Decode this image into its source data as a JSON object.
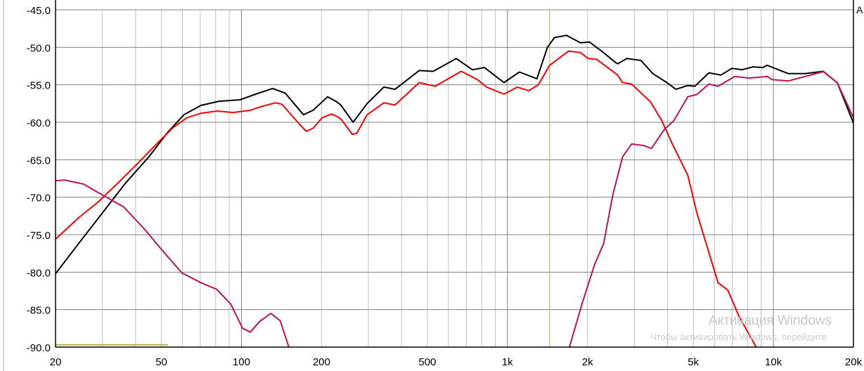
{
  "chart_data": {
    "type": "line",
    "title": "",
    "xlabel": "",
    "ylabel": "",
    "x_scale": "log",
    "xlim": [
      20,
      20000
    ],
    "ylim": [
      -90,
      -45
    ],
    "grid": true,
    "x_ticks": [
      20,
      50,
      100,
      200,
      500,
      1000,
      2000,
      5000,
      10000,
      20000
    ],
    "x_tick_labels": [
      "20",
      "50",
      "100",
      "200",
      "500",
      "1k",
      "2k",
      "5k",
      "10k",
      "20k"
    ],
    "y_ticks": [
      -45,
      -50,
      -55,
      -60,
      -65,
      -70,
      -75,
      -80,
      -85,
      -90
    ],
    "y_tick_labels": [
      "-45.0",
      "-50.0",
      "-55.0",
      "-60.0",
      "-65.0",
      "-70.0",
      "-75.0",
      "-80.0",
      "-85.0",
      "-90.0"
    ],
    "series": [
      {
        "color": "#000000",
        "points": [
          [
            20,
            -80.2
          ],
          [
            24.4,
            -76.2
          ],
          [
            30,
            -72.1
          ],
          [
            36.7,
            -68.1
          ],
          [
            44.9,
            -64.6
          ],
          [
            52.9,
            -61.3
          ],
          [
            60.8,
            -59.0
          ],
          [
            70.4,
            -57.75
          ],
          [
            82.4,
            -57.2
          ],
          [
            98.8,
            -57.0
          ],
          [
            114,
            -56.2
          ],
          [
            131,
            -55.5
          ],
          [
            146,
            -56.1
          ],
          [
            171,
            -59.0
          ],
          [
            186,
            -58.4
          ],
          [
            211,
            -56.6
          ],
          [
            229,
            -57.3
          ],
          [
            237,
            -57.75
          ],
          [
            263,
            -60.0
          ],
          [
            297,
            -57.5
          ],
          [
            343,
            -55.3
          ],
          [
            378,
            -55.6
          ],
          [
            466,
            -53.1
          ],
          [
            526,
            -53.2
          ],
          [
            642,
            -51.5
          ],
          [
            739,
            -53.0
          ],
          [
            819,
            -52.7
          ],
          [
            971,
            -54.7
          ],
          [
            1109,
            -53.3
          ],
          [
            1291,
            -54.2
          ],
          [
            1414,
            -50.0
          ],
          [
            1503,
            -48.7
          ],
          [
            1667,
            -48.4
          ],
          [
            1882,
            -49.4
          ],
          [
            2036,
            -49.3
          ],
          [
            2259,
            -50.5
          ],
          [
            2566,
            -52.1
          ],
          [
            2597,
            -52.2
          ],
          [
            2811,
            -51.5
          ],
          [
            3174,
            -51.75
          ],
          [
            3520,
            -53.5
          ],
          [
            3975,
            -54.7
          ],
          [
            4300,
            -55.6
          ],
          [
            4769,
            -55.1
          ],
          [
            5068,
            -55.2
          ],
          [
            5723,
            -53.4
          ],
          [
            6346,
            -53.7
          ],
          [
            6993,
            -52.8
          ],
          [
            7613,
            -53.0
          ],
          [
            8389,
            -52.6
          ],
          [
            9135,
            -52.7
          ],
          [
            9474,
            -52.4
          ],
          [
            11366,
            -53.5
          ],
          [
            13149,
            -53.5
          ],
          [
            15400,
            -53.2
          ],
          [
            17398,
            -54.75
          ],
          [
            20000,
            -60.1
          ]
        ]
      },
      {
        "color": "#ff0000",
        "points": [
          [
            20,
            -75.6
          ],
          [
            24.4,
            -72.75
          ],
          [
            28.8,
            -70.7
          ],
          [
            33.9,
            -68.3
          ],
          [
            40.7,
            -65.5
          ],
          [
            48.9,
            -62.6
          ],
          [
            55.2,
            -60.75
          ],
          [
            62.3,
            -59.4
          ],
          [
            70.4,
            -58.8
          ],
          [
            80.9,
            -58.5
          ],
          [
            93,
            -58.7
          ],
          [
            108,
            -58.4
          ],
          [
            119,
            -57.9
          ],
          [
            134,
            -57.4
          ],
          [
            142,
            -57.6
          ],
          [
            161,
            -59.8
          ],
          [
            175,
            -61.2
          ],
          [
            186,
            -60.8
          ],
          [
            201,
            -59.4
          ],
          [
            218,
            -58.9
          ],
          [
            229,
            -59.25
          ],
          [
            237,
            -59.6
          ],
          [
            261,
            -61.6
          ],
          [
            271,
            -61.5
          ],
          [
            297,
            -59.0
          ],
          [
            343,
            -57.4
          ],
          [
            378,
            -57.7
          ],
          [
            466,
            -54.7
          ],
          [
            535,
            -55.2
          ],
          [
            670,
            -53.2
          ],
          [
            771,
            -54.3
          ],
          [
            834,
            -55.3
          ],
          [
            971,
            -56.25
          ],
          [
            1089,
            -55.3
          ],
          [
            1158,
            -55.6
          ],
          [
            1201,
            -55.8
          ],
          [
            1307,
            -55.0
          ],
          [
            1441,
            -52.4
          ],
          [
            1698,
            -50.5
          ],
          [
            1882,
            -50.7
          ],
          [
            2012,
            -51.5
          ],
          [
            2164,
            -51.6
          ],
          [
            2597,
            -53.7
          ],
          [
            2710,
            -54.7
          ],
          [
            2932,
            -54.9
          ],
          [
            3456,
            -57.3
          ],
          [
            3808,
            -59.8
          ],
          [
            4146,
            -62.7
          ],
          [
            4769,
            -67.1
          ],
          [
            5158,
            -72.1
          ],
          [
            5723,
            -77.4
          ],
          [
            6192,
            -81.4
          ],
          [
            6742,
            -82.4
          ],
          [
            7430,
            -85.9
          ],
          [
            8650,
            -90.1
          ]
        ]
      },
      {
        "color": "#c0105c",
        "points": [
          [
            20,
            -67.8
          ],
          [
            21.6,
            -67.7
          ],
          [
            25.5,
            -68.25
          ],
          [
            30,
            -69.7
          ],
          [
            36.1,
            -71.3
          ],
          [
            43.3,
            -74.3
          ],
          [
            50.7,
            -77.2
          ],
          [
            59.7,
            -80.1
          ],
          [
            70.4,
            -81.4
          ],
          [
            80.9,
            -82.3
          ],
          [
            91.3,
            -84.3
          ],
          [
            101,
            -87.5
          ],
          [
            108,
            -88.0
          ],
          [
            117,
            -86.6
          ],
          [
            129,
            -85.5
          ],
          [
            140,
            -86.5
          ],
          [
            151,
            -90.1
          ]
        ]
      },
      {
        "color": "#c0105c",
        "points": [
          [
            1708,
            -90.1
          ],
          [
            1916,
            -84.0
          ],
          [
            2126,
            -79.0
          ],
          [
            2300,
            -76.2
          ],
          [
            2490,
            -69.7
          ],
          [
            2710,
            -64.6
          ],
          [
            2932,
            -62.9
          ],
          [
            3252,
            -63.1
          ],
          [
            3478,
            -63.5
          ],
          [
            3902,
            -60.9
          ],
          [
            4222,
            -59.8
          ],
          [
            4769,
            -56.6
          ],
          [
            5158,
            -56.3
          ],
          [
            5723,
            -54.9
          ],
          [
            6192,
            -55.2
          ],
          [
            7164,
            -53.9
          ],
          [
            8090,
            -54.1
          ],
          [
            9474,
            -53.9
          ],
          [
            9884,
            -54.3
          ],
          [
            11366,
            -54.5
          ],
          [
            13149,
            -53.9
          ],
          [
            15400,
            -53.25
          ],
          [
            17398,
            -54.75
          ],
          [
            20000,
            -59.4
          ]
        ]
      }
    ],
    "markers": {
      "color": "#b8b040",
      "hline": {
        "y": -89.7,
        "x_from": 20,
        "x_to": 53
      },
      "vline": {
        "x": 1441
      }
    }
  },
  "watermark": {
    "line1": "Активация Windows",
    "line2": "Чтобы активировать Windows, перейдите"
  },
  "edge_text": "A"
}
